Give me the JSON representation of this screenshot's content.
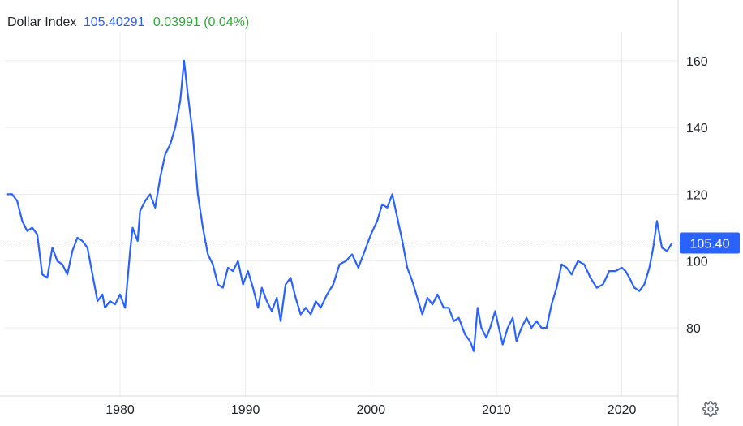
{
  "header": {
    "title": "Dollar Index",
    "price": "105.40291",
    "change": "0.03991 (0.04%)"
  },
  "current_price_label": "105.40",
  "colors": {
    "line": "#2962ff",
    "price": "#2b5cff",
    "change": "#2eaa3a",
    "grid": "#e9ecef",
    "text": "#1f2328"
  },
  "icons": {
    "settings": "gear-icon"
  },
  "chart_data": {
    "type": "line",
    "title": "",
    "xlabel": "",
    "ylabel": "",
    "xlim": [
      1971.0,
      2024.2
    ],
    "ylim": [
      60,
      170
    ],
    "x_ticks": [
      "1980",
      "1990",
      "2000",
      "2010",
      "2020"
    ],
    "y_ticks": [
      "80",
      "100",
      "120",
      "140",
      "160"
    ],
    "grid": true,
    "current_value": 105.4,
    "series": [
      {
        "x": [
          1971.0,
          1971.4,
          1971.8,
          1972.2,
          1972.6,
          1973.0,
          1973.4,
          1973.8,
          1974.2,
          1974.6,
          1975.0,
          1975.4,
          1975.8,
          1976.2,
          1976.6,
          1977.0,
          1977.4,
          1977.8,
          1978.2,
          1978.6,
          1978.8,
          1979.2,
          1979.6,
          1980.0,
          1980.4,
          1980.8,
          1981.0,
          1981.4,
          1981.6,
          1982.0,
          1982.4,
          1982.8,
          1983.2,
          1983.6,
          1984.0,
          1984.4,
          1984.8,
          1985.1,
          1985.4,
          1985.8,
          1986.2,
          1986.6,
          1987.0,
          1987.4,
          1987.8,
          1988.2,
          1988.6,
          1989.0,
          1989.4,
          1989.8,
          1990.2,
          1990.6,
          1991.0,
          1991.3,
          1991.7,
          1992.1,
          1992.5,
          1992.8,
          1993.2,
          1993.6,
          1994.0,
          1994.4,
          1994.8,
          1995.2,
          1995.6,
          1996.0,
          1996.5,
          1997.0,
          1997.5,
          1998.0,
          1998.5,
          1999.0,
          1999.5,
          2000.0,
          2000.5,
          2000.9,
          2001.3,
          2001.7,
          2002.1,
          2002.5,
          2002.9,
          2003.3,
          2003.7,
          2004.1,
          2004.5,
          2004.9,
          2005.3,
          2005.8,
          2006.2,
          2006.6,
          2007.0,
          2007.5,
          2007.9,
          2008.2,
          2008.5,
          2008.8,
          2009.2,
          2009.5,
          2009.9,
          2010.2,
          2010.5,
          2010.9,
          2011.3,
          2011.6,
          2012.0,
          2012.4,
          2012.8,
          2013.2,
          2013.6,
          2014.0,
          2014.4,
          2014.8,
          2015.2,
          2015.6,
          2016.0,
          2016.5,
          2017.0,
          2017.5,
          2018.0,
          2018.5,
          2019.0,
          2019.5,
          2020.0,
          2020.3,
          2020.6,
          2021.0,
          2021.4,
          2021.8,
          2022.2,
          2022.5,
          2022.8,
          2023.2,
          2023.6,
          2024.0
        ],
        "values": [
          120,
          120,
          118,
          112,
          109,
          110,
          108,
          96,
          95,
          104,
          100,
          99,
          96,
          103,
          107,
          106,
          104,
          96,
          88,
          90,
          86,
          88,
          87,
          90,
          86,
          103,
          110,
          106,
          115,
          118,
          120,
          116,
          125,
          132,
          135,
          140,
          148,
          160,
          150,
          138,
          120,
          110,
          102,
          99,
          93,
          92,
          98,
          97,
          100,
          93,
          97,
          92,
          86,
          92,
          88,
          85,
          89,
          82,
          93,
          95,
          89,
          84,
          86,
          84,
          88,
          86,
          90,
          93,
          99,
          100,
          102,
          98,
          103,
          108,
          112,
          117,
          116,
          120,
          113,
          106,
          98,
          94,
          89,
          84,
          89,
          87,
          90,
          86,
          86,
          82,
          83,
          78,
          76,
          73,
          86,
          80,
          77,
          80,
          85,
          80,
          75,
          80,
          83,
          76,
          80,
          83,
          80,
          82,
          80,
          80,
          87,
          92,
          99,
          98,
          96,
          100,
          99,
          95,
          92,
          93,
          97,
          97,
          98,
          97,
          95,
          92,
          91,
          93,
          98,
          104,
          112,
          104,
          103,
          105.4
        ]
      }
    ]
  }
}
